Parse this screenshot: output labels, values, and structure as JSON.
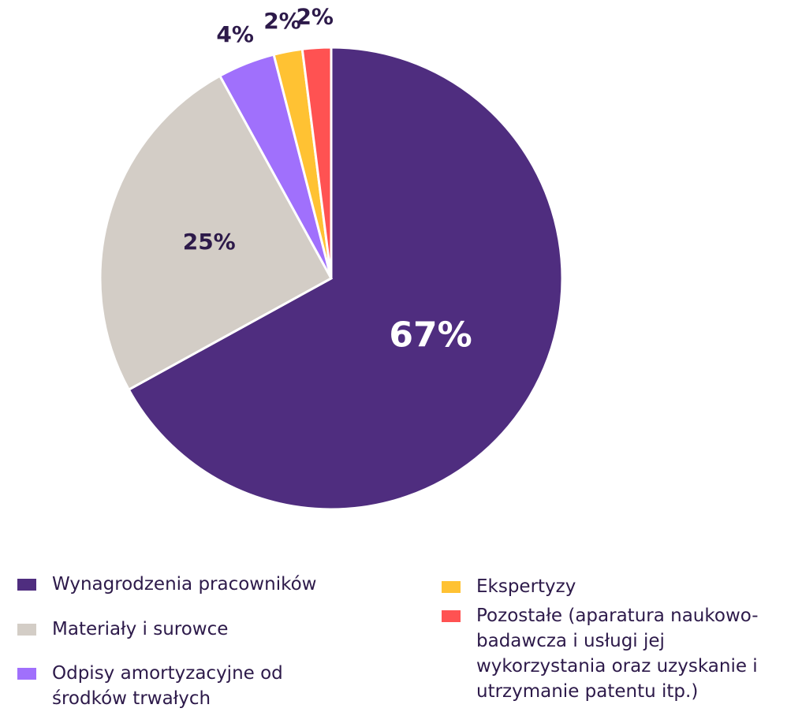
{
  "chart_data": {
    "type": "pie",
    "categories": [
      "Wynagrodzenia pracowników",
      "Materiały i surowce",
      "Odpisy amortyzacyjne od środków trwałych",
      "Ekspertyzy",
      "Pozostałe (aparatura naukowo-badawcza i usługi jej wykorzystania oraz uzyskanie i utrzymanie patentu itp.)"
    ],
    "values": [
      67,
      25,
      4,
      2,
      2
    ],
    "value_labels": [
      "67%",
      "25%",
      "4%",
      "2%",
      "2%"
    ],
    "colors": [
      "#4f2d7f",
      "#d3cdc6",
      "#a070fc",
      "#ffc233",
      "#ff5252"
    ],
    "legend": "bottom"
  }
}
